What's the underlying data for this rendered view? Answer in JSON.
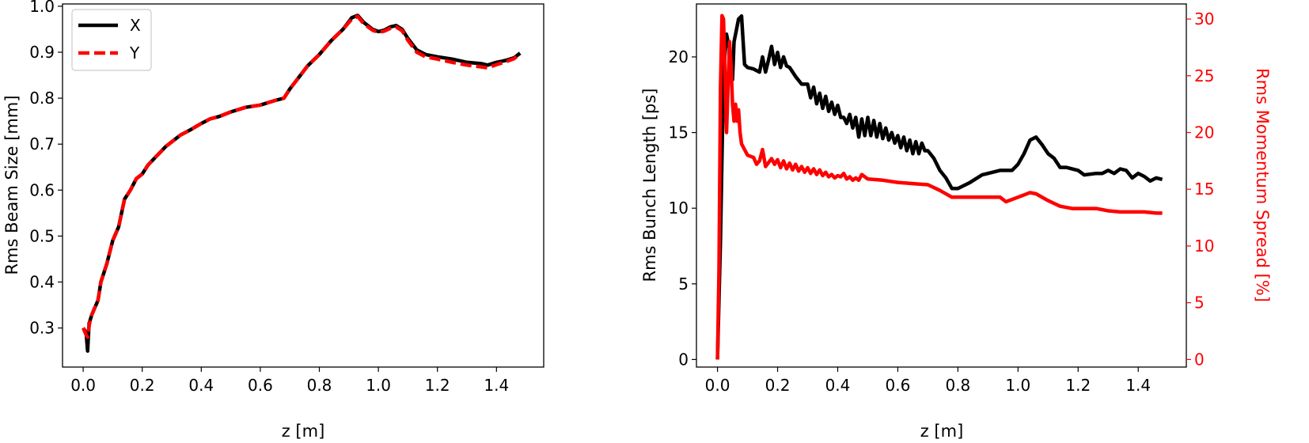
{
  "chart_data": [
    {
      "type": "line",
      "xlabel": "z [m]",
      "ylabel": "Rms Beam Size [mm]",
      "xlim": [
        -0.07,
        1.56
      ],
      "ylim": [
        0.215,
        1.005
      ],
      "xticks": [
        0.0,
        0.2,
        0.4,
        0.6,
        0.8,
        1.0,
        1.2,
        1.4
      ],
      "xtick_labels": [
        "0.0",
        "0.2",
        "0.4",
        "0.6",
        "0.8",
        "1.0",
        "1.2",
        "1.4"
      ],
      "yticks": [
        0.3,
        0.4,
        0.5,
        0.6,
        0.7,
        0.8,
        0.9,
        1.0
      ],
      "ytick_labels": [
        "0.3",
        "0.4",
        "0.5",
        "0.6",
        "0.7",
        "0.8",
        "0.9",
        "1.0"
      ],
      "grid": false,
      "legend": "top-left",
      "series": [
        {
          "name": "X",
          "color": "#000000",
          "style": "solid",
          "x": [
            0.0,
            0.01,
            0.015,
            0.02,
            0.025,
            0.03,
            0.04,
            0.05,
            0.06,
            0.08,
            0.1,
            0.12,
            0.14,
            0.16,
            0.18,
            0.2,
            0.22,
            0.25,
            0.28,
            0.3,
            0.33,
            0.36,
            0.4,
            0.43,
            0.46,
            0.5,
            0.55,
            0.6,
            0.65,
            0.68,
            0.7,
            0.73,
            0.76,
            0.8,
            0.84,
            0.88,
            0.91,
            0.93,
            0.95,
            0.98,
            1.0,
            1.02,
            1.04,
            1.06,
            1.08,
            1.1,
            1.13,
            1.16,
            1.2,
            1.25,
            1.3,
            1.35,
            1.37,
            1.4,
            1.43,
            1.46,
            1.48
          ],
          "y": [
            0.3,
            0.29,
            0.25,
            0.31,
            0.32,
            0.33,
            0.345,
            0.36,
            0.4,
            0.44,
            0.49,
            0.52,
            0.58,
            0.6,
            0.625,
            0.635,
            0.655,
            0.675,
            0.695,
            0.705,
            0.72,
            0.73,
            0.745,
            0.755,
            0.76,
            0.77,
            0.78,
            0.785,
            0.795,
            0.8,
            0.82,
            0.845,
            0.87,
            0.895,
            0.925,
            0.95,
            0.975,
            0.98,
            0.965,
            0.95,
            0.945,
            0.948,
            0.955,
            0.958,
            0.95,
            0.93,
            0.905,
            0.895,
            0.89,
            0.885,
            0.878,
            0.875,
            0.872,
            0.878,
            0.882,
            0.888,
            0.898
          ]
        },
        {
          "name": "Y",
          "color": "#ff0000",
          "style": "dashed",
          "x": [
            0.0,
            0.01,
            0.015,
            0.02,
            0.025,
            0.03,
            0.04,
            0.05,
            0.06,
            0.08,
            0.1,
            0.12,
            0.14,
            0.16,
            0.18,
            0.2,
            0.22,
            0.25,
            0.28,
            0.3,
            0.33,
            0.36,
            0.4,
            0.43,
            0.46,
            0.5,
            0.55,
            0.6,
            0.65,
            0.68,
            0.7,
            0.73,
            0.76,
            0.8,
            0.84,
            0.88,
            0.91,
            0.93,
            0.95,
            0.98,
            1.0,
            1.02,
            1.04,
            1.06,
            1.08,
            1.1,
            1.13,
            1.16,
            1.2,
            1.25,
            1.3,
            1.35,
            1.37,
            1.4,
            1.43,
            1.46,
            1.48
          ],
          "y": [
            0.3,
            0.285,
            0.28,
            0.305,
            0.32,
            0.33,
            0.345,
            0.36,
            0.4,
            0.44,
            0.49,
            0.52,
            0.58,
            0.6,
            0.625,
            0.635,
            0.655,
            0.675,
            0.695,
            0.705,
            0.72,
            0.73,
            0.745,
            0.755,
            0.76,
            0.77,
            0.78,
            0.785,
            0.795,
            0.8,
            0.82,
            0.845,
            0.87,
            0.895,
            0.925,
            0.95,
            0.972,
            0.978,
            0.962,
            0.948,
            0.943,
            0.946,
            0.952,
            0.955,
            0.947,
            0.926,
            0.9,
            0.89,
            0.885,
            0.878,
            0.872,
            0.868,
            0.866,
            0.873,
            0.879,
            0.886,
            0.897
          ]
        }
      ]
    },
    {
      "type": "line",
      "xlabel": "z [m]",
      "ylabel": "Rms Bunch Length [ps]",
      "y2label": "Rms Momentum Spread [%]",
      "xlim": [
        -0.07,
        1.56
      ],
      "ylim": [
        -0.5,
        23.5
      ],
      "y2lim": [
        -0.67,
        31.33
      ],
      "xticks": [
        0.0,
        0.2,
        0.4,
        0.6,
        0.8,
        1.0,
        1.2,
        1.4
      ],
      "xtick_labels": [
        "0.0",
        "0.2",
        "0.4",
        "0.6",
        "0.8",
        "1.0",
        "1.2",
        "1.4"
      ],
      "yticks": [
        0,
        5,
        10,
        15,
        20
      ],
      "ytick_labels": [
        "0",
        "5",
        "10",
        "15",
        "20"
      ],
      "y2ticks": [
        0,
        5,
        10,
        15,
        20,
        25,
        30
      ],
      "y2tick_labels": [
        "0",
        "5",
        "10",
        "15",
        "20",
        "25",
        "30"
      ],
      "grid": false,
      "series": [
        {
          "axis": "left",
          "color": "#000000",
          "x": [
            0.0,
            0.01,
            0.02,
            0.03,
            0.04,
            0.05,
            0.055,
            0.06,
            0.07,
            0.08,
            0.09,
            0.1,
            0.12,
            0.14,
            0.15,
            0.16,
            0.17,
            0.18,
            0.19,
            0.2,
            0.21,
            0.22,
            0.23,
            0.24,
            0.26,
            0.28,
            0.3,
            0.31,
            0.32,
            0.33,
            0.34,
            0.35,
            0.36,
            0.37,
            0.38,
            0.39,
            0.4,
            0.41,
            0.42,
            0.43,
            0.44,
            0.45,
            0.46,
            0.47,
            0.48,
            0.49,
            0.5,
            0.51,
            0.52,
            0.53,
            0.54,
            0.55,
            0.56,
            0.57,
            0.58,
            0.59,
            0.6,
            0.61,
            0.62,
            0.63,
            0.64,
            0.65,
            0.66,
            0.67,
            0.68,
            0.69,
            0.7,
            0.72,
            0.74,
            0.76,
            0.78,
            0.8,
            0.84,
            0.88,
            0.9,
            0.94,
            0.98,
            1.0,
            1.02,
            1.04,
            1.06,
            1.08,
            1.1,
            1.12,
            1.14,
            1.16,
            1.2,
            1.22,
            1.26,
            1.28,
            1.3,
            1.32,
            1.34,
            1.36,
            1.38,
            1.4,
            1.42,
            1.44,
            1.46,
            1.48
          ],
          "y": [
            0.0,
            8.0,
            19.0,
            21.5,
            20.5,
            18.5,
            21.0,
            21.5,
            22.5,
            22.7,
            19.5,
            19.3,
            19.2,
            19.0,
            20.0,
            19.0,
            19.8,
            20.7,
            19.5,
            20.3,
            19.3,
            20.0,
            19.4,
            19.3,
            18.7,
            18.2,
            18.2,
            17.3,
            18.0,
            16.9,
            17.6,
            16.6,
            17.4,
            16.4,
            17.0,
            16.2,
            16.8,
            16.0,
            16.0,
            15.6,
            16.2,
            15.3,
            16.0,
            14.7,
            15.9,
            14.8,
            16.0,
            14.8,
            15.8,
            14.7,
            15.6,
            14.6,
            15.3,
            14.5,
            15.0,
            14.3,
            14.8,
            14.0,
            14.7,
            13.8,
            14.5,
            13.6,
            14.4,
            13.6,
            14.3,
            13.8,
            13.8,
            13.3,
            12.5,
            12.0,
            11.3,
            11.3,
            11.7,
            12.2,
            12.3,
            12.5,
            12.5,
            12.9,
            13.6,
            14.5,
            14.7,
            14.2,
            13.6,
            13.3,
            12.7,
            12.7,
            12.5,
            12.2,
            12.3,
            12.3,
            12.5,
            12.3,
            12.6,
            12.5,
            12.0,
            12.3,
            12.1,
            11.8,
            12.0,
            11.9
          ]
        },
        {
          "axis": "right",
          "color": "#ff0000",
          "x": [
            0.0,
            0.005,
            0.01,
            0.015,
            0.02,
            0.025,
            0.03,
            0.035,
            0.04,
            0.045,
            0.05,
            0.055,
            0.06,
            0.065,
            0.07,
            0.075,
            0.08,
            0.1,
            0.12,
            0.13,
            0.14,
            0.15,
            0.16,
            0.18,
            0.19,
            0.2,
            0.21,
            0.22,
            0.23,
            0.24,
            0.25,
            0.26,
            0.27,
            0.28,
            0.29,
            0.3,
            0.31,
            0.32,
            0.33,
            0.34,
            0.35,
            0.36,
            0.37,
            0.38,
            0.39,
            0.4,
            0.41,
            0.42,
            0.43,
            0.44,
            0.45,
            0.46,
            0.47,
            0.48,
            0.5,
            0.55,
            0.6,
            0.65,
            0.7,
            0.74,
            0.78,
            0.82,
            0.86,
            0.9,
            0.94,
            0.96,
            1.0,
            1.04,
            1.06,
            1.1,
            1.14,
            1.18,
            1.22,
            1.26,
            1.3,
            1.34,
            1.38,
            1.42,
            1.46,
            1.48
          ],
          "y": [
            0.0,
            8.0,
            24.0,
            30.3,
            30.0,
            25.0,
            20.0,
            24.0,
            28.0,
            26.0,
            22.5,
            21.0,
            22.5,
            21.0,
            22.0,
            20.0,
            19.0,
            18.0,
            17.8,
            17.2,
            17.5,
            18.5,
            17.0,
            17.7,
            17.2,
            17.6,
            16.9,
            17.5,
            16.8,
            17.3,
            16.7,
            17.2,
            16.6,
            17.0,
            16.5,
            16.9,
            16.4,
            16.8,
            16.3,
            16.7,
            16.2,
            16.5,
            16.1,
            16.3,
            16.0,
            16.2,
            16.1,
            16.4,
            15.9,
            16.1,
            15.8,
            16.0,
            15.8,
            16.3,
            15.9,
            15.8,
            15.6,
            15.5,
            15.4,
            14.9,
            14.3,
            14.3,
            14.3,
            14.3,
            14.3,
            13.9,
            14.3,
            14.7,
            14.6,
            14.0,
            13.5,
            13.3,
            13.3,
            13.3,
            13.1,
            13.0,
            13.0,
            13.0,
            12.9,
            12.9
          ]
        }
      ]
    }
  ]
}
